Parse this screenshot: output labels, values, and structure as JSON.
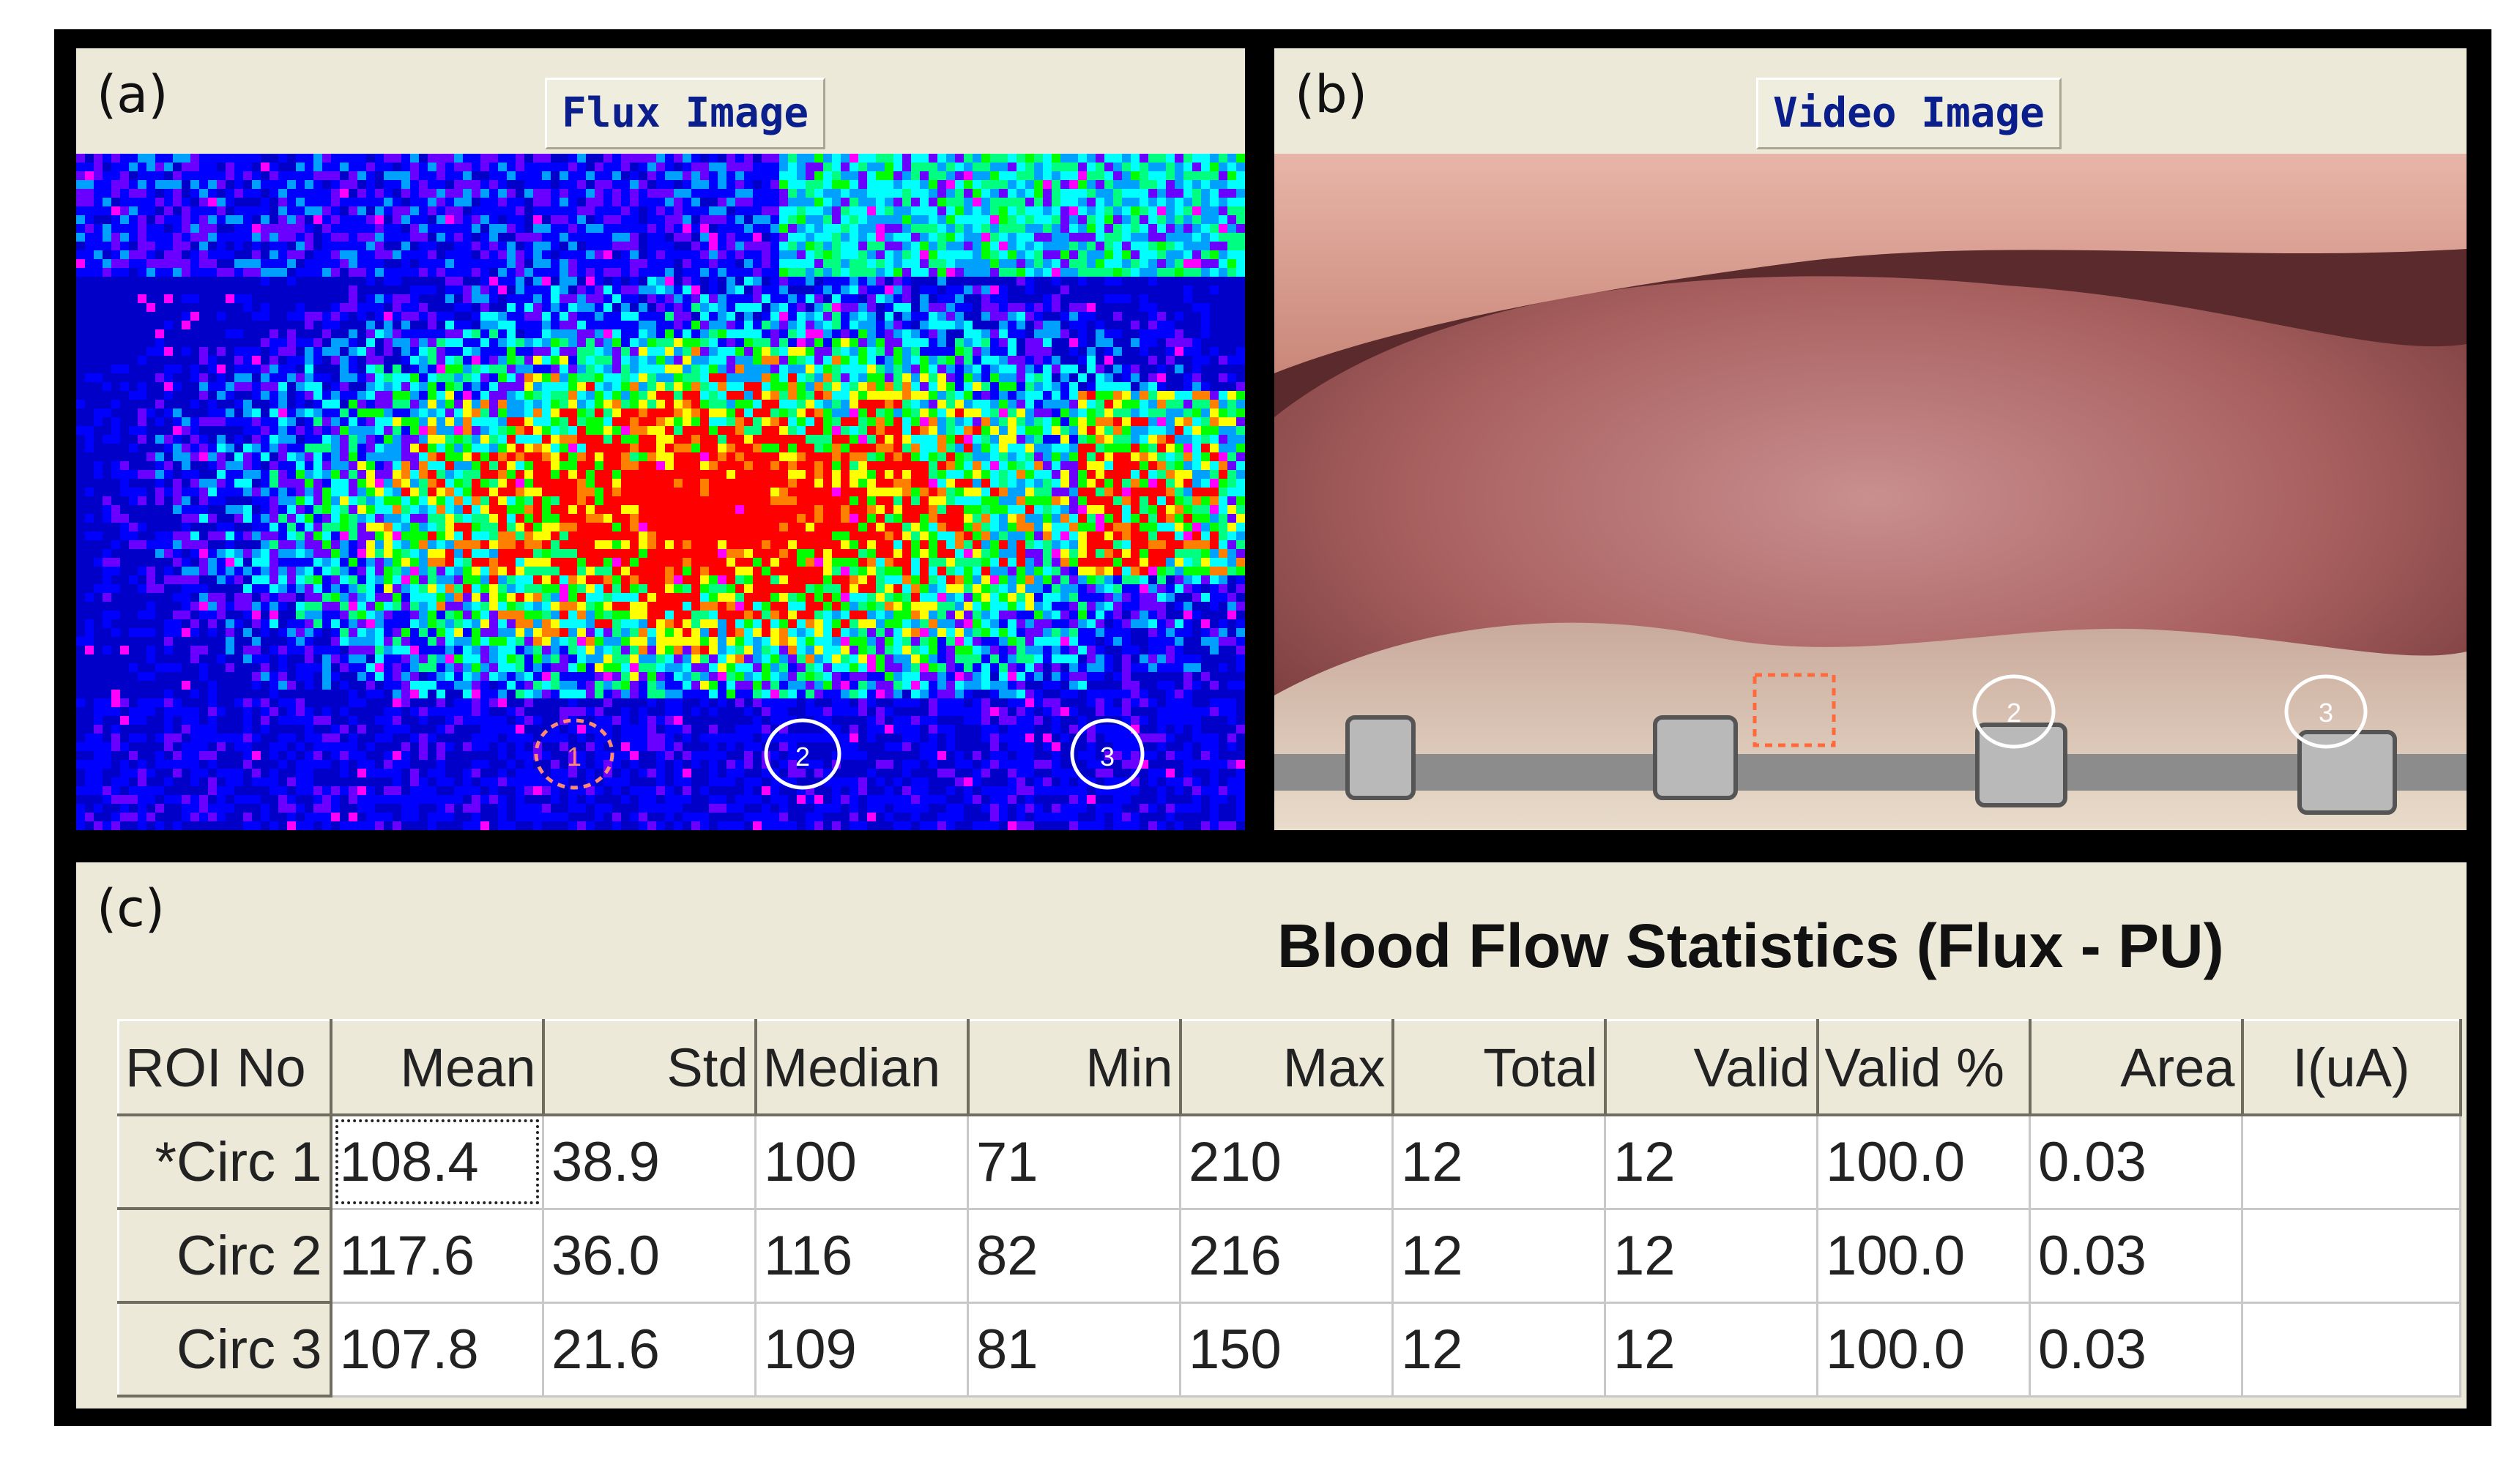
{
  "panel_a": {
    "letter": "(a)",
    "title": "Flux Image",
    "rois": [
      {
        "label": "1",
        "color": "#ff8a6e"
      },
      {
        "label": "2",
        "color": "#ffffff"
      },
      {
        "label": "3",
        "color": "#ffffff"
      }
    ]
  },
  "panel_b": {
    "letter": "(b)",
    "title": "Video Image",
    "rois": [
      {
        "label": "",
        "color": "#ff6a3d"
      },
      {
        "label": "2",
        "color": "#ffffff"
      },
      {
        "label": "3",
        "color": "#ffffff"
      }
    ]
  },
  "panel_c": {
    "letter": "(c)",
    "title": "Blood Flow Statistics (Flux - PU)",
    "columns": [
      "ROI No",
      "Mean",
      "Std",
      "Median",
      "Min",
      "Max",
      "Total",
      "Valid",
      "Valid %",
      "Area",
      "I(uA)"
    ],
    "rows": [
      {
        "roi": "*Circ 1",
        "cells": [
          "108.4",
          "38.9",
          "100",
          "71",
          "210",
          "12",
          "12",
          "100.0",
          "0.03",
          ""
        ]
      },
      {
        "roi": "Circ 2",
        "cells": [
          "117.6",
          "36.0",
          "116",
          "82",
          "216",
          "12",
          "12",
          "100.0",
          "0.03",
          ""
        ]
      },
      {
        "roi": "Circ 3",
        "cells": [
          "107.8",
          "21.6",
          "109",
          "81",
          "150",
          "12",
          "12",
          "100.0",
          "0.03",
          ""
        ]
      }
    ]
  },
  "colors": {
    "flux_palette": [
      "#0000c8",
      "#0000ff",
      "#6a00ff",
      "#00a0ff",
      "#00ffff",
      "#00ff80",
      "#00ff00",
      "#ffff00",
      "#ff8000",
      "#ff0000",
      "#ff00ff",
      "#ffffff"
    ],
    "highlight_roi": "#ff6a3d",
    "title_text": "#0b1f8c"
  }
}
